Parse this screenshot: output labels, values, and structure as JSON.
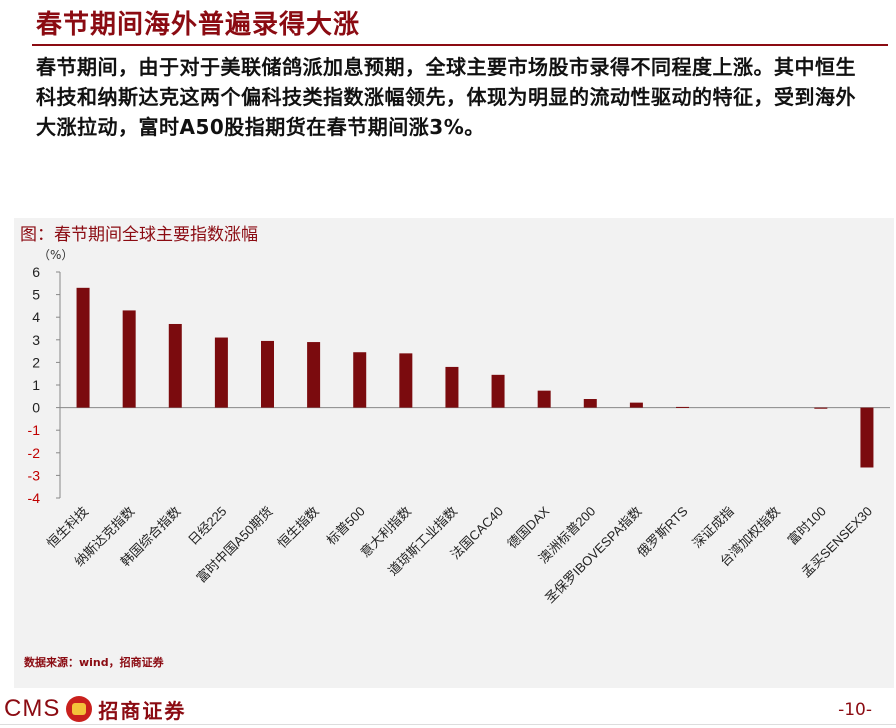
{
  "header": {
    "title": "春节期间海外普遍录得大涨"
  },
  "body": {
    "paragraph": "春节期间，由于对于美联储鸽派加息预期，全球主要市场股市录得不同程度上涨。其中恒生科技和纳斯达克这两个偏科技类指数涨幅领先，体现为明显的流动性驱动的特征，受到海外大涨拉动，富时A50股指期货在春节期间涨3%。"
  },
  "chart": {
    "caption": "图：春节期间全球主要指数涨幅",
    "unit": "（%）"
  },
  "chart_data": {
    "type": "bar",
    "categories": [
      "恒生科技",
      "纳斯达克指数",
      "韩国综合指数",
      "日经225",
      "富时中国A50期货",
      "恒生指数",
      "标普500",
      "意大利指数",
      "道琼斯工业指数",
      "法国CAC40",
      "德国DAX",
      "澳洲标普200",
      "圣保罗IBOVESPA指数",
      "俄罗斯RTS",
      "深证成指",
      "台湾加权指数",
      "富时100",
      "孟买SENSEX30"
    ],
    "values": [
      5.3,
      4.3,
      3.7,
      3.1,
      2.95,
      2.9,
      2.45,
      2.4,
      1.8,
      1.45,
      0.75,
      0.38,
      0.22,
      0.03,
      0.0,
      0.0,
      -0.05,
      -2.65
    ],
    "ylim": [
      -4,
      6
    ],
    "yticks": [
      6,
      5,
      4,
      3,
      2,
      1,
      0,
      -1,
      -2,
      -3,
      -4
    ],
    "bar_color": "#7b0b0e",
    "negative_tick_color": "#c00000"
  },
  "footer": {
    "source": "数据来源：wind，招商证券",
    "brand_latin": "CMS",
    "brand_name": "招商证券",
    "page": "-10-"
  }
}
